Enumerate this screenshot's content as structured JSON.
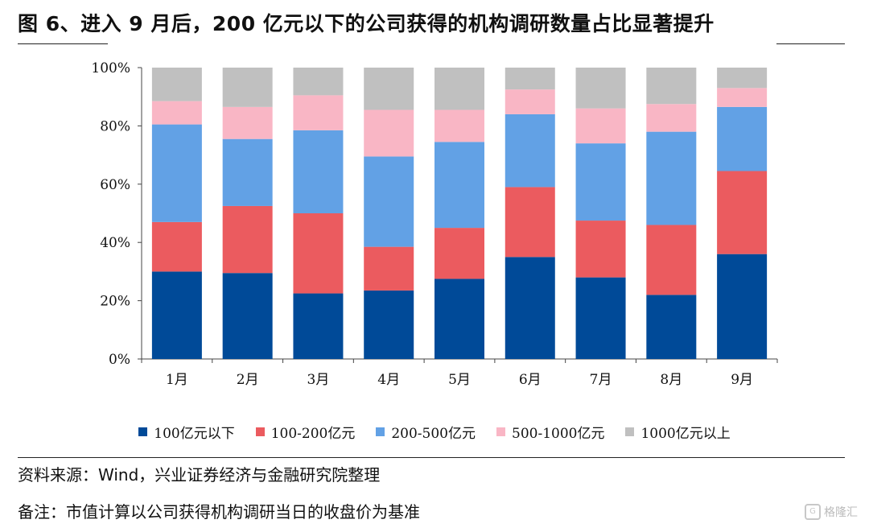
{
  "header": {
    "title": "图 6、进入 9 月后，200 亿元以下的公司获得的机构调研数量占比显著提升"
  },
  "footer": {
    "source": "资料来源：Wind，兴业证券经济与金融研究院整理",
    "note": "备注：市值计算以公司获得机构调研当日的收盘价为基准"
  },
  "watermark": {
    "text": "格隆汇"
  },
  "chart_data": {
    "type": "bar",
    "stacked": true,
    "categories": [
      "1月",
      "2月",
      "3月",
      "4月",
      "5月",
      "6月",
      "7月",
      "8月",
      "9月"
    ],
    "yticks": [
      "0%",
      "20%",
      "40%",
      "60%",
      "80%",
      "100%"
    ],
    "ylim": [
      0,
      100
    ],
    "grid": false,
    "legend_position": "bottom",
    "series": [
      {
        "name": "100亿元以下",
        "color": "#004A98",
        "values": [
          30,
          29.5,
          22.5,
          23.5,
          27.5,
          35,
          28,
          22,
          36
        ]
      },
      {
        "name": "100-200亿元",
        "color": "#EB5B5F",
        "values": [
          17,
          23,
          27.5,
          15,
          17.5,
          24,
          19.5,
          24,
          28.5
        ]
      },
      {
        "name": "200-500亿元",
        "color": "#62A1E5",
        "values": [
          33.5,
          23,
          28.5,
          31,
          29.5,
          25,
          26.5,
          32,
          22
        ]
      },
      {
        "name": "500-1000亿元",
        "color": "#F9B6C5",
        "values": [
          8,
          11,
          12,
          16,
          11,
          8.5,
          12,
          9.5,
          6.5
        ]
      },
      {
        "name": "1000亿元以上",
        "color": "#C0C0C0",
        "values": [
          11.5,
          13.5,
          9.5,
          14.5,
          14.5,
          7.5,
          14,
          12.5,
          7
        ]
      }
    ]
  }
}
